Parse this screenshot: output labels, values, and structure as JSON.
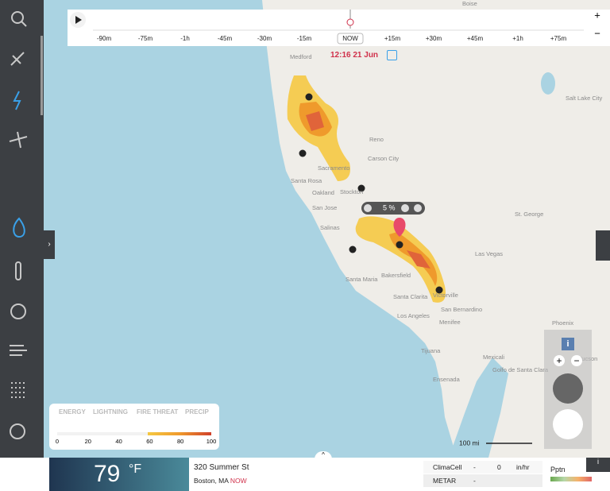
{
  "timeline": {
    "ticks": [
      "-90m",
      "-75m",
      "-1h",
      "-45m",
      "-30m",
      "-15m",
      "NOW",
      "+15m",
      "+30m",
      "+45m",
      "+1h",
      "+75m"
    ],
    "time": "12:16 21 Jun"
  },
  "map": {
    "cities": [
      "Boise",
      "Medford",
      "Reno",
      "Carson City",
      "Salt Lake City",
      "Sacramento",
      "Santa Rosa",
      "Oakland",
      "Stockton",
      "San Jose",
      "Salinas",
      "St. George",
      "Las Vegas",
      "Santa Maria",
      "Bakersfield",
      "Santa Clarita",
      "Victorville",
      "San Bernardino",
      "Los Angeles",
      "Menifee",
      "Tijuana",
      "Mexicali",
      "Phoenix",
      "Tucson",
      "Ensenada",
      "Golfo de Santa Clara"
    ],
    "popup": "5 %",
    "scale": "100 mi"
  },
  "legend": {
    "tabs": [
      "ENERGY",
      "LIGHTNING",
      "FIRE THREAT",
      "PRECIP"
    ],
    "scale": [
      0,
      20,
      40,
      60,
      80,
      100
    ]
  },
  "weather": {
    "temp": 79,
    "unit": "°F",
    "address": "320 Summer St",
    "city": "Boston, MA",
    "when": "NOW",
    "readings": [
      {
        "source": "ClimaCell",
        "status": "-",
        "value": 0,
        "unit": "in/hr"
      },
      {
        "source": "METAR",
        "status": "-"
      }
    ],
    "pptn": "Pptn"
  }
}
